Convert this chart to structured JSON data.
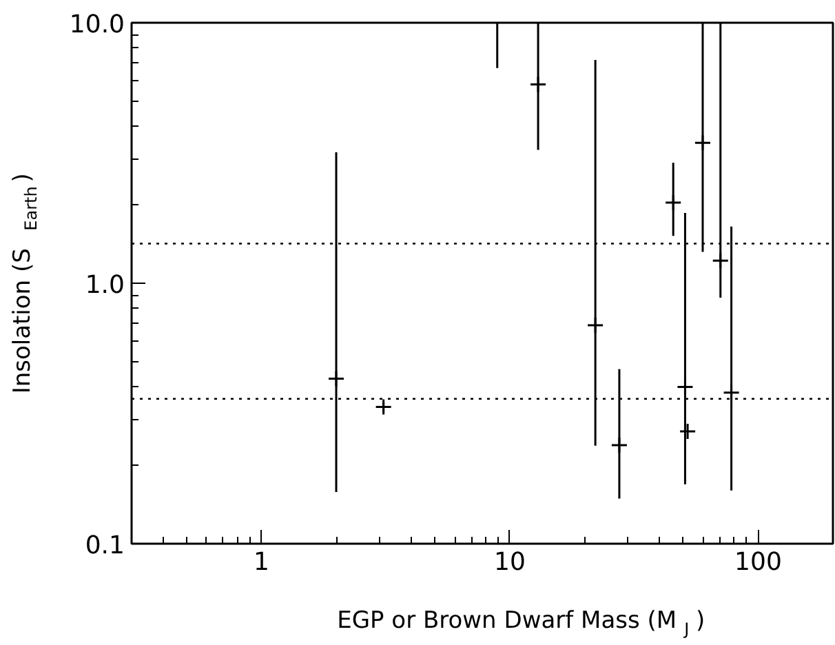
{
  "chart_data": {
    "type": "scatter",
    "xlabel": "EGP or Brown Dwarf Mass (M$_{J}$)",
    "ylabel": "Insolation (S$_{Earth}$)",
    "log": "xy",
    "xlim": [
      0.3,
      200
    ],
    "xticks": [
      1,
      10,
      100
    ],
    "ylim": [
      0.1,
      10
    ],
    "yticks": [
      {
        "value": 0.1,
        "label": "0.1"
      },
      {
        "value": 1,
        "label": "1.0"
      },
      {
        "value": 10,
        "label": "10.0"
      }
    ],
    "grid": false,
    "marker": "cross",
    "ref_lines": [
      {
        "axis": "y",
        "value": 1.42,
        "line_style": "dotted",
        "color": "#000000"
      },
      {
        "axis": "y",
        "value": 0.36,
        "line_style": "dotted",
        "color": "#000000"
      }
    ],
    "series": [
      {
        "color": "#000000",
        "x": [
          2.0,
          3.1,
          13.0,
          22.1,
          27.6,
          45.5,
          50.8,
          52,
          59.8,
          70.5,
          78
        ],
        "values": [
          0.43,
          0.335,
          5.8,
          0.69,
          0.239,
          2.04,
          0.4,
          0.27,
          3.46,
          1.22,
          0.38
        ],
        "errors": [
          [
            0.158,
            3.18
          ],
          [
            0.32,
            0.35
          ],
          [
            3.25,
            10
          ],
          [
            0.238,
            7.2
          ],
          [
            0.149,
            0.468
          ],
          [
            1.52,
            2.9
          ],
          [
            0.169,
            1.86
          ],
          null,
          [
            1.32,
            10
          ],
          [
            0.88,
            10
          ],
          [
            0.16,
            1.65
          ]
        ]
      },
      {
        "type": "line",
        "marker": "none",
        "color": "#000000",
        "x": [
          8.9,
          8.9
        ],
        "values": [
          6.7,
          10
        ]
      }
    ]
  }
}
